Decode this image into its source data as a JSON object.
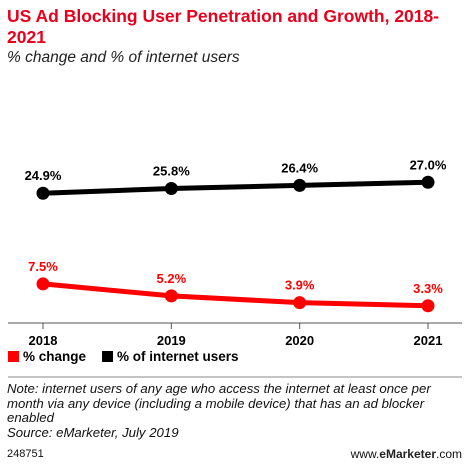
{
  "chart_data": {
    "type": "line",
    "title": "US Ad Blocking User Penetration and Growth, 2018-2021",
    "subtitle": "% change and % of internet users",
    "categories": [
      "2018",
      "2019",
      "2020",
      "2021"
    ],
    "series": [
      {
        "name": "% change",
        "color": "#ff0000",
        "values": [
          7.5,
          5.2,
          3.9,
          3.3
        ],
        "labels": [
          "7.5%",
          "5.2%",
          "3.9%",
          "3.3%"
        ]
      },
      {
        "name": "% of internet users",
        "color": "#000000",
        "values": [
          24.9,
          25.8,
          26.4,
          27.0
        ],
        "labels": [
          "24.9%",
          "25.8%",
          "26.4%",
          "27.0%"
        ]
      }
    ],
    "ylim": [
      0,
      33
    ],
    "grid": false,
    "legend_position": "bottom-left"
  },
  "note": "Note: internet users of any age who access the internet at least once per month via any device (including a mobile device) that has an ad blocker enabled",
  "source": "Source: eMarketer, July 2019",
  "chart_id": "248751",
  "brand": {
    "prefix": "www.",
    "name": "eMarketer",
    "suffix": ".com"
  }
}
